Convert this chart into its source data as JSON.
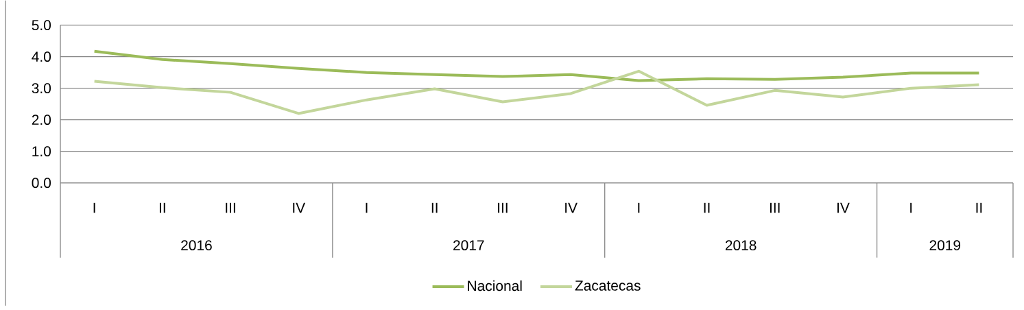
{
  "chart_data": {
    "type": "line",
    "categories": [
      "I",
      "II",
      "III",
      "IV",
      "I",
      "II",
      "III",
      "IV",
      "I",
      "II",
      "III",
      "IV",
      "I",
      "II"
    ],
    "annotations": [
      "2016",
      "2017",
      "2018",
      "2019"
    ],
    "series": [
      {
        "name": "Nacional",
        "color": "#9bbb59",
        "values": [
          4.17,
          3.91,
          3.78,
          3.63,
          3.5,
          3.43,
          3.37,
          3.43,
          3.24,
          3.3,
          3.28,
          3.35,
          3.48,
          3.48
        ]
      },
      {
        "name": "Zacatecas",
        "color": "#c3d69b",
        "values": [
          3.22,
          3.02,
          2.87,
          2.2,
          2.63,
          2.98,
          2.57,
          2.83,
          3.54,
          2.46,
          2.93,
          2.72,
          3.0,
          3.11
        ]
      }
    ],
    "ylim": [
      0,
      5
    ],
    "yticks": [
      {
        "value": 0,
        "label": "0.0"
      },
      {
        "value": 1,
        "label": "1.0"
      },
      {
        "value": 2,
        "label": "2.0"
      },
      {
        "value": 3,
        "label": "3.0"
      },
      {
        "value": 4,
        "label": "4.0"
      },
      {
        "value": 5,
        "label": "5.0"
      }
    ],
    "grid": "y",
    "legend": "bottom"
  }
}
